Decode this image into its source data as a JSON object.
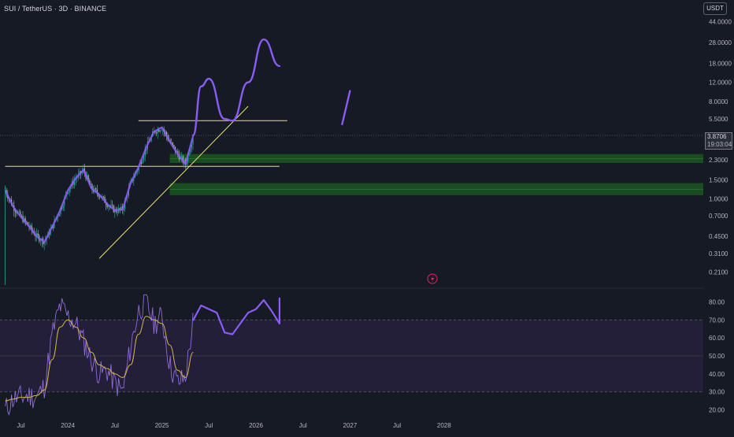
{
  "header": {
    "symbol_title": "SUI / TetherUS · 3D · BINANCE",
    "currency_button": "USDT"
  },
  "price_tag": {
    "price": "3.8706",
    "countdown": "19:03:04"
  },
  "colors": {
    "background": "#161a25",
    "candle_up": "#26a69a",
    "candle_down": "#9fb7b4",
    "drawing": "#8a5cf6",
    "trendline": "#e8e36a",
    "zone": "#1b5e20",
    "rsi_line": "#8f6bd8",
    "rsi_ma": "#d8b34a",
    "rsi_band": "#2a2240"
  },
  "chart_data": [
    {
      "type": "line",
      "title": "",
      "scale": "log",
      "ylim": [
        0.17,
        55
      ],
      "y_ticks": [
        "44.0000",
        "28.0000",
        "18.0000",
        "12.0000",
        "8.0000",
        "5.5000",
        "2.3000",
        "1.5000",
        "1.0000",
        "0.7000",
        "0.4500",
        "0.3100",
        "0.2100"
      ],
      "x_ticks": [
        "Jul",
        "2024",
        "Jul",
        "2025",
        "Jul",
        "2026",
        "Jul",
        "2027",
        "Jul",
        "2028"
      ],
      "series": [
        {
          "x": [
            "2023-05",
            "2023-06",
            "2023-07",
            "2023-08",
            "2023-09",
            "2023-10",
            "2023-11",
            "2023-12",
            "2024-01",
            "2024-02",
            "2024-03",
            "2024-04",
            "2024-05",
            "2024-06",
            "2024-07",
            "2024-08",
            "2024-09",
            "2024-10",
            "2024-11",
            "2024-12",
            "2025-01",
            "2025-02",
            "2025-03",
            "2025-04",
            "2025-05"
          ],
          "y": [
            1.2,
            0.85,
            0.68,
            0.56,
            0.45,
            0.4,
            0.55,
            0.78,
            1.2,
            1.55,
            1.85,
            1.25,
            1.1,
            0.9,
            0.78,
            0.8,
            1.4,
            1.95,
            3.0,
            4.2,
            4.6,
            3.4,
            2.6,
            2.1,
            3.87
          ]
        }
      ],
      "annotations": {
        "horizontal_lines": [
          5.3,
          2.0
        ],
        "trendline": {
          "from": [
            "2024-05",
            0.28
          ],
          "to": [
            "2025-12",
            7.2
          ]
        },
        "zones": [
          [
            2.15,
            2.6
          ],
          [
            1.08,
            1.4
          ]
        ],
        "projection_path": [
          [
            "2025-05",
            3.9
          ],
          [
            "2025-06",
            11.0
          ],
          [
            "2025-07",
            13.0
          ],
          [
            "2025-09",
            5.5
          ],
          [
            "2025-10",
            5.3
          ],
          [
            "2025-12",
            12.0
          ],
          [
            "2026-02",
            30.0
          ],
          [
            "2026-04",
            17.0
          ]
        ],
        "projection_tail": [
          [
            "2026-12",
            4.9
          ],
          [
            "2027-01",
            10.0
          ]
        ]
      }
    },
    {
      "type": "line",
      "title": "",
      "ylim": [
        15,
        85
      ],
      "y_ticks": [
        "80.00",
        "70.00",
        "60.00",
        "50.00",
        "40.00",
        "30.00",
        "20.00"
      ],
      "band": [
        30,
        70
      ],
      "midline": 50,
      "series": [
        {
          "x": [
            "2023-05",
            "2023-06",
            "2023-07",
            "2023-08",
            "2023-09",
            "2023-10",
            "2023-11",
            "2023-12",
            "2024-01",
            "2024-02",
            "2024-03",
            "2024-04",
            "2024-05",
            "2024-06",
            "2024-07",
            "2024-08",
            "2024-09",
            "2024-10",
            "2024-11",
            "2024-12",
            "2025-01",
            "2025-02",
            "2025-03",
            "2025-04",
            "2025-05"
          ],
          "y": [
            20,
            26,
            27,
            28,
            27,
            33,
            62,
            78,
            72,
            68,
            58,
            48,
            40,
            42,
            35,
            30,
            55,
            75,
            80,
            68,
            72,
            45,
            35,
            38,
            70
          ]
        },
        {
          "x": [
            "2023-05",
            "2023-06",
            "2023-07",
            "2023-08",
            "2023-09",
            "2023-10",
            "2023-11",
            "2023-12",
            "2024-01",
            "2024-02",
            "2024-03",
            "2024-04",
            "2024-05",
            "2024-06",
            "2024-07",
            "2024-08",
            "2024-09",
            "2024-10",
            "2024-11",
            "2024-12",
            "2025-01",
            "2025-02",
            "2025-03",
            "2025-04",
            "2025-05"
          ],
          "y": [
            25,
            26,
            27,
            27,
            28,
            31,
            48,
            66,
            70,
            66,
            60,
            52,
            45,
            43,
            40,
            38,
            45,
            62,
            72,
            70,
            68,
            56,
            42,
            38,
            52
          ]
        }
      ],
      "annotations": {
        "projection_path": [
          [
            "2025-05",
            70.0
          ],
          [
            "2025-06",
            78.0
          ],
          [
            "2025-07",
            76.0
          ],
          [
            "2025-08",
            74.0
          ],
          [
            "2025-09",
            63.0
          ],
          [
            "2025-10",
            62.0
          ],
          [
            "2025-12",
            74.0
          ],
          [
            "2026-01",
            76.0
          ],
          [
            "2026-02",
            81.0
          ],
          [
            "2026-03",
            75.0
          ],
          [
            "2026-04",
            68.0
          ],
          [
            "2026-04",
            82.0
          ]
        ]
      }
    }
  ]
}
